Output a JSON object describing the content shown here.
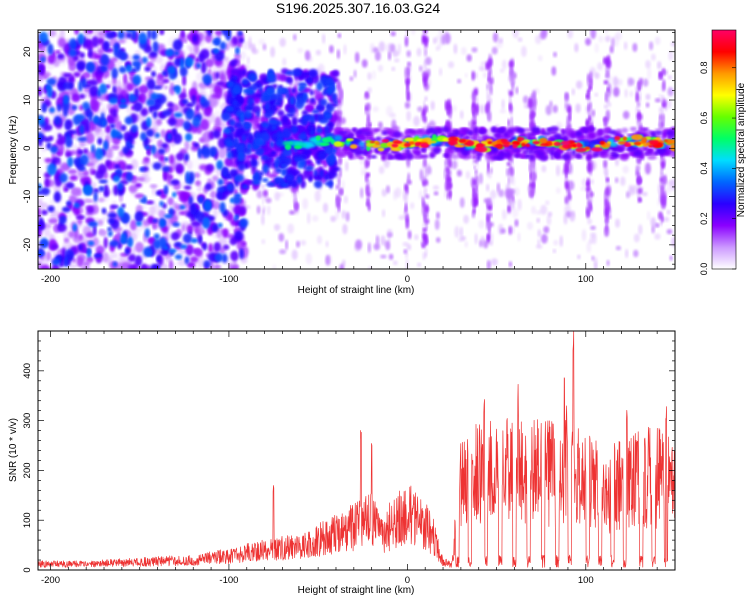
{
  "figure_title": "S196.2025.307.16.03.G24",
  "chart_data": [
    {
      "type": "heatmap",
      "title": "S196.2025.307.16.03.G24",
      "xlabel": "Height of straight line (km)",
      "ylabel": "Frequency (Hz)",
      "xlim": [
        -207,
        150
      ],
      "ylim": [
        -25,
        24.5
      ],
      "x_ticks": [
        -200,
        -100,
        0,
        100
      ],
      "x_tick_labels": [
        "-200",
        "-100",
        "0",
        "100"
      ],
      "y_ticks": [
        -20,
        -10,
        0,
        10,
        20
      ],
      "y_tick_labels": [
        "-20",
        "-10",
        "0",
        "10",
        "20"
      ],
      "colorbar": {
        "label": "Normalized spectral amplitude",
        "range": [
          0.0,
          0.95
        ],
        "ticks": [
          0.0,
          0.2,
          0.4,
          0.6,
          0.8
        ],
        "tick_labels": [
          "0.0",
          "0.2",
          "0.4",
          "0.6",
          "0.8"
        ],
        "colors": [
          "#ffffff",
          "#cc99ff",
          "#8a00ff",
          "#2a00ff",
          "#0066ff",
          "#00ddff",
          "#00ff66",
          "#66ff00",
          "#ffff00",
          "#ff9900",
          "#ff0000",
          "#ff0066"
        ]
      },
      "features": {
        "noise_region_x": [
          -207,
          -100
        ],
        "noise_amplitude": 0.35,
        "transition_region_x": [
          -100,
          -40
        ],
        "ridge_region_x": [
          -80,
          150
        ],
        "ridge_frequency_hz": 1.0,
        "ridge_peak_amplitude": 0.95,
        "vertical_streaks_x": [
          -95,
          -80,
          -63,
          -38,
          -22,
          0,
          10,
          23,
          38,
          46,
          58,
          70,
          90,
          102,
          112,
          130,
          143
        ]
      }
    },
    {
      "type": "line",
      "xlabel": "Height of straight line (km)",
      "ylabel": "SNR (10 * v/v)",
      "xlim": [
        -207,
        150
      ],
      "ylim": [
        0,
        480
      ],
      "x_ticks": [
        -200,
        -100,
        0,
        100
      ],
      "x_tick_labels": [
        "-200",
        "-100",
        "0",
        "100"
      ],
      "y_ticks": [
        0,
        100,
        200,
        300,
        400
      ],
      "y_tick_labels": [
        "0",
        "100",
        "200",
        "300",
        "400"
      ],
      "color": "#ee3333",
      "envelope": {
        "x": [
          -207,
          -180,
          -150,
          -120,
          -100,
          -80,
          -70,
          -60,
          -50,
          -40,
          -30,
          -20,
          -15,
          -10,
          -5,
          0,
          5,
          10,
          15,
          20,
          25,
          30,
          40,
          60,
          80,
          90,
          100,
          110,
          120,
          130,
          140,
          150
        ],
        "y": [
          15,
          15,
          20,
          25,
          35,
          50,
          55,
          60,
          75,
          90,
          110,
          130,
          80,
          110,
          130,
          140,
          130,
          115,
          80,
          20,
          15,
          230,
          240,
          245,
          240,
          280,
          230,
          205,
          215,
          230,
          230,
          225
        ]
      },
      "spikes": [
        {
          "x": -75,
          "y": 170
        },
        {
          "x": -26,
          "y": 285
        },
        {
          "x": -20,
          "y": 260
        },
        {
          "x": 43,
          "y": 350
        },
        {
          "x": 62,
          "y": 375
        },
        {
          "x": 88,
          "y": 405
        },
        {
          "x": 93,
          "y": 480
        },
        {
          "x": 123,
          "y": 325
        },
        {
          "x": 145,
          "y": 335
        }
      ],
      "dip_positions_x": [
        28,
        35,
        44,
        52,
        60,
        68,
        76,
        84,
        91,
        101,
        108,
        115,
        122,
        131,
        138,
        145
      ]
    }
  ]
}
